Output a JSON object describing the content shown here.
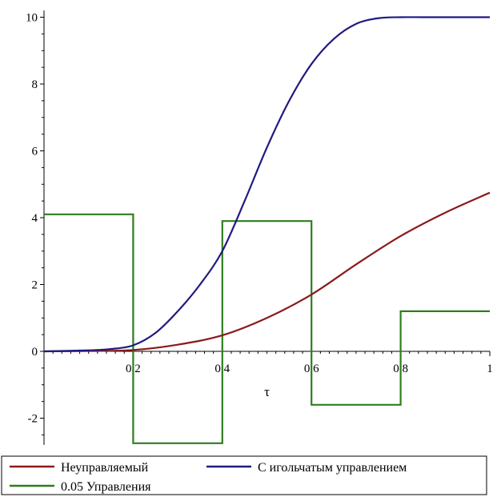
{
  "chart_data": {
    "type": "line",
    "xlabel": "τ",
    "ylabel": "",
    "xlim": [
      0,
      1
    ],
    "ylim": [
      -2.8,
      10.2
    ],
    "x_ticks": [
      0.2,
      0.4,
      0.6,
      0.8,
      1
    ],
    "x_tick_labels": [
      "0.2",
      "0.4",
      "0.6",
      "0.8",
      "1"
    ],
    "y_ticks": [
      -2,
      0,
      2,
      4,
      6,
      8,
      10
    ],
    "y_tick_labels": [
      "-2",
      "0",
      "2",
      "4",
      "6",
      "8",
      "10"
    ],
    "grid": false,
    "legend_position": "bottom",
    "series": [
      {
        "name": "Неуправляемый",
        "color": "#8b1a1a",
        "x": [
          0,
          0.1,
          0.2,
          0.3,
          0.4,
          0.5,
          0.6,
          0.7,
          0.8,
          0.9,
          1.0
        ],
        "y": [
          0,
          0.01,
          0.04,
          0.2,
          0.48,
          1.0,
          1.7,
          2.6,
          3.45,
          4.15,
          4.75
        ]
      },
      {
        "name": "С игольчатым управлением",
        "color": "#1f1a80",
        "x": [
          0,
          0.1,
          0.15,
          0.2,
          0.25,
          0.3,
          0.35,
          0.4,
          0.45,
          0.5,
          0.55,
          0.6,
          0.65,
          0.7,
          0.75,
          0.8,
          0.85,
          0.9,
          1.0
        ],
        "y": [
          0,
          0.03,
          0.07,
          0.18,
          0.55,
          1.2,
          2.0,
          3.0,
          4.5,
          6.1,
          7.5,
          8.6,
          9.35,
          9.8,
          9.97,
          10.0,
          10.0,
          10.0,
          10.0
        ]
      },
      {
        "name": "0.05 Управления",
        "color": "#2e7d1e",
        "step": true,
        "x": [
          0,
          0.2,
          0.2,
          0.4,
          0.4,
          0.6,
          0.6,
          0.8,
          0.8,
          1.0
        ],
        "y": [
          4.1,
          4.1,
          -2.75,
          -2.75,
          3.9,
          3.9,
          -1.6,
          -1.6,
          1.2,
          1.2
        ]
      }
    ]
  }
}
